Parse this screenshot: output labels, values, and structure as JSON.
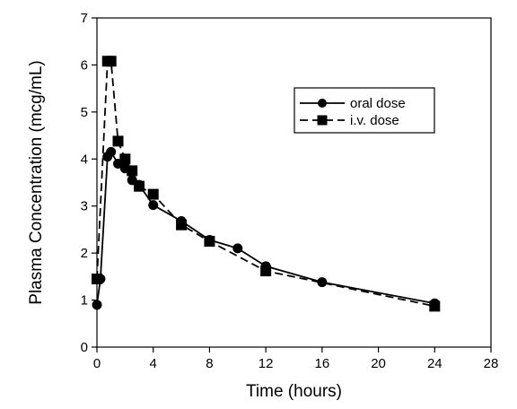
{
  "chart_data": {
    "type": "line",
    "title": "",
    "xlabel": "Time (hours)",
    "ylabel": "Plasma Concentration (mcg/mL)",
    "xlim": [
      0,
      28
    ],
    "ylim": [
      0,
      7
    ],
    "xticks": [
      0,
      4,
      8,
      12,
      16,
      20,
      24,
      28
    ],
    "yticks": [
      0,
      1,
      2,
      3,
      4,
      5,
      6,
      7
    ],
    "grid": false,
    "legend_position": "upper-right",
    "series": [
      {
        "name": "oral dose",
        "marker": "circle",
        "line": "solid",
        "color": "#000000",
        "x": [
          0,
          0.25,
          0.75,
          1,
          1.5,
          2,
          2.5,
          3,
          4,
          6,
          8,
          10,
          12,
          16,
          24
        ],
        "y": [
          0.9,
          1.45,
          4.05,
          4.15,
          3.9,
          3.8,
          3.55,
          3.45,
          3.02,
          2.68,
          2.28,
          2.1,
          1.72,
          1.38,
          0.93
        ]
      },
      {
        "name": "i.v. dose",
        "marker": "square",
        "line": "dashed",
        "color": "#000000",
        "x": [
          0,
          0.75,
          1,
          1.5,
          2,
          2.5,
          3,
          4,
          6,
          8,
          12,
          24
        ],
        "y": [
          1.45,
          6.08,
          6.08,
          4.38,
          4.0,
          3.75,
          3.42,
          3.25,
          2.6,
          2.25,
          1.62,
          0.87
        ]
      }
    ]
  }
}
